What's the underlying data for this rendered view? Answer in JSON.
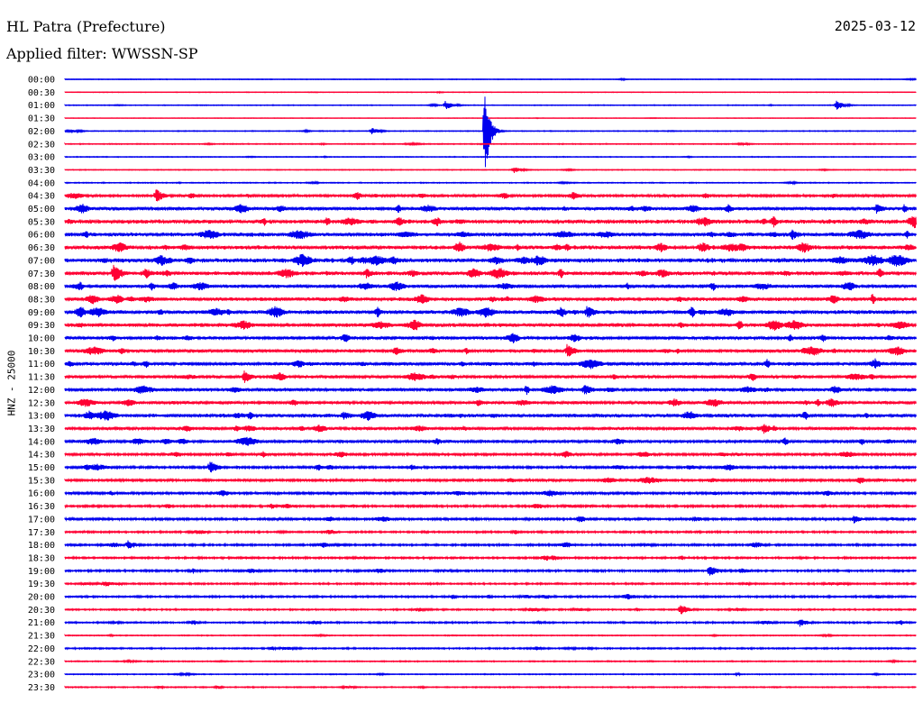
{
  "header": {
    "station": "HL Patra (Prefecture)",
    "date": "2025-03-12",
    "filter": "Applied filter: WWSSN-SP",
    "channel": "HNZ - 25000"
  },
  "colors": {
    "even_rows": "#0000ee",
    "odd_rows": "#ff0033"
  },
  "chart_data": {
    "type": "line",
    "title": "HL Patra (Prefecture)",
    "subtitle": "Applied filter: WWSSN-SP",
    "ylabel": "HNZ - 25000",
    "row_labels": [
      "00:00",
      "00:30",
      "01:00",
      "01:30",
      "02:00",
      "02:30",
      "03:00",
      "03:30",
      "04:00",
      "04:30",
      "05:00",
      "05:30",
      "06:00",
      "06:30",
      "07:00",
      "07:30",
      "08:00",
      "08:30",
      "09:00",
      "09:30",
      "10:00",
      "10:30",
      "11:00",
      "11:30",
      "12:00",
      "12:30",
      "13:00",
      "13:30",
      "14:00",
      "14:30",
      "15:00",
      "15:30",
      "16:00",
      "16:30",
      "17:00",
      "17:30",
      "18:00",
      "18:30",
      "19:00",
      "19:30",
      "20:00",
      "20:30",
      "21:00",
      "21:30",
      "22:00",
      "22:30",
      "23:00",
      "23:30"
    ],
    "row_minutes": 30,
    "row_amplitude": [
      0.4,
      0.4,
      0.5,
      0.3,
      0.5,
      0.6,
      0.5,
      0.5,
      0.6,
      1.6,
      2.1,
      2.6,
      2.4,
      2.5,
      2.7,
      2.4,
      2.1,
      2.3,
      2.4,
      2.3,
      2.0,
      2.0,
      2.1,
      1.9,
      2.1,
      1.9,
      2.2,
      1.8,
      1.8,
      1.5,
      1.5,
      1.5,
      1.5,
      1.3,
      1.4,
      1.1,
      1.2,
      1.1,
      1.2,
      1.0,
      1.1,
      0.9,
      1.0,
      0.6,
      0.9,
      0.7,
      0.6,
      0.7
    ],
    "events": [
      {
        "row": 2,
        "minute": 13.4,
        "amp": 5
      },
      {
        "row": 2,
        "minute": 27.2,
        "amp": 5
      },
      {
        "row": 4,
        "minute": 10.8,
        "amp": 4
      },
      {
        "row": 4,
        "minute": 14.8,
        "amp": 52
      },
      {
        "row": 7,
        "minute": 15.8,
        "amp": 4
      },
      {
        "row": 9,
        "minute": 3.2,
        "amp": 8
      },
      {
        "row": 10,
        "minute": 28.6,
        "amp": 6
      },
      {
        "row": 12,
        "minute": 25.6,
        "amp": 7
      },
      {
        "row": 15,
        "minute": 1.7,
        "amp": 12
      },
      {
        "row": 15,
        "minute": 2.8,
        "amp": 7
      },
      {
        "row": 15,
        "minute": 10.6,
        "amp": 6
      },
      {
        "row": 15,
        "minute": 15.3,
        "amp": 8
      },
      {
        "row": 18,
        "minute": 18.4,
        "amp": 8
      },
      {
        "row": 21,
        "minute": 11.6,
        "amp": 6
      },
      {
        "row": 21,
        "minute": 17.7,
        "amp": 8
      },
      {
        "row": 23,
        "minute": 6.3,
        "amp": 8
      },
      {
        "row": 24,
        "minute": 18.3,
        "amp": 7
      },
      {
        "row": 25,
        "minute": 14.5,
        "amp": 5
      },
      {
        "row": 26,
        "minute": 9.8,
        "amp": 6
      },
      {
        "row": 27,
        "minute": 24.6,
        "amp": 7
      },
      {
        "row": 30,
        "minute": 5.1,
        "amp": 8
      },
      {
        "row": 34,
        "minute": 18.1,
        "amp": 5
      },
      {
        "row": 34,
        "minute": 27.8,
        "amp": 5
      },
      {
        "row": 36,
        "minute": 2.2,
        "amp": 6
      },
      {
        "row": 38,
        "minute": 22.7,
        "amp": 7
      },
      {
        "row": 41,
        "minute": 21.7,
        "amp": 6
      },
      {
        "row": 42,
        "minute": 25.9,
        "amp": 5
      }
    ]
  }
}
